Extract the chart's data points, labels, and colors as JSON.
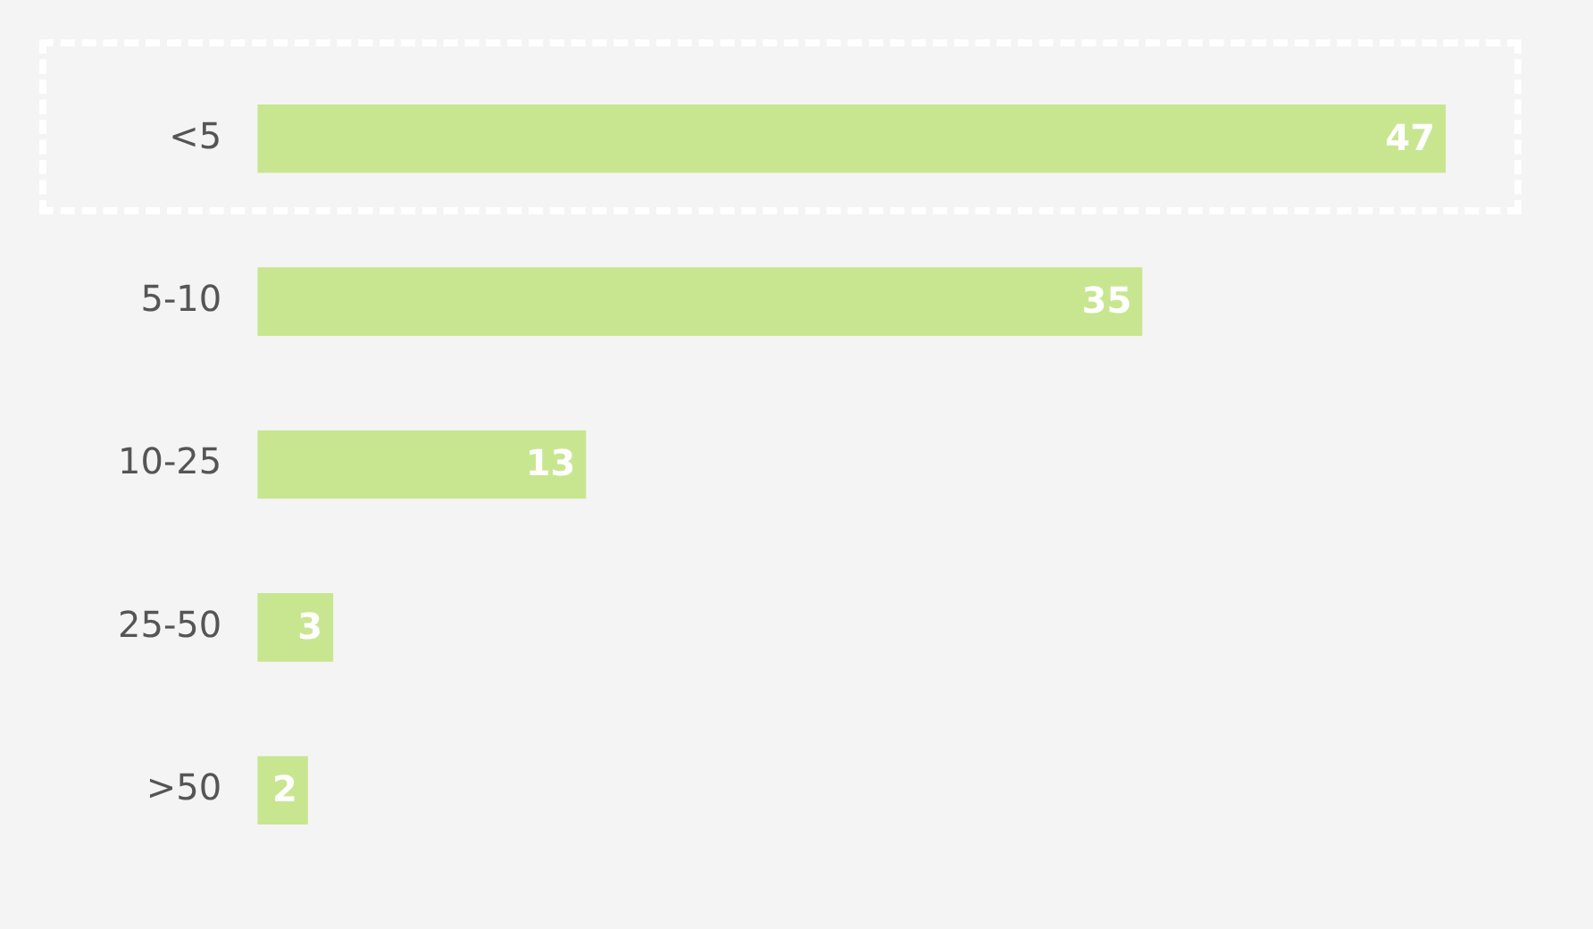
{
  "chart_data": {
    "type": "bar",
    "orientation": "horizontal",
    "categories": [
      "<5",
      "5-10",
      "10-25",
      "25-50",
      ">50"
    ],
    "values": [
      47,
      35,
      13,
      3,
      2
    ],
    "color": "#c8e690",
    "data_labels": true,
    "grid": false,
    "legend": false
  }
}
